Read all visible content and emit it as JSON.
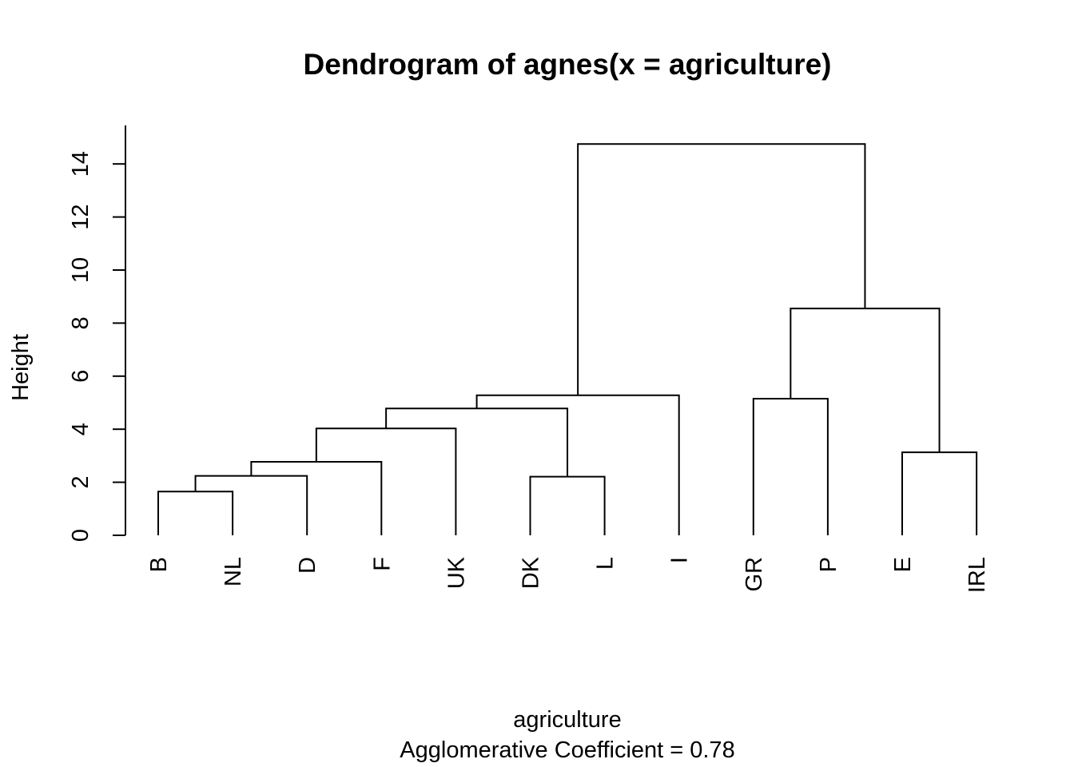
{
  "chart_data": {
    "type": "dendrogram",
    "title": "Dendrogram of  agnes(x = agriculture)",
    "xlabel": "agriculture",
    "sublabel": "Agglomerative Coefficient =  0.78",
    "ylabel": "Height",
    "ylim": [
      0,
      15.2
    ],
    "yticks": [
      0,
      2,
      4,
      6,
      8,
      10,
      12,
      14
    ],
    "leaves": [
      "B",
      "NL",
      "D",
      "F",
      "UK",
      "DK",
      "L",
      "I",
      "GR",
      "P",
      "E",
      "IRL"
    ],
    "merges": [
      {
        "id": "m1",
        "left": "B",
        "right": "NL",
        "height": 1.65
      },
      {
        "id": "m2",
        "left": "m1",
        "right": "D",
        "height": 2.24
      },
      {
        "id": "m3",
        "left": "m2",
        "right": "F",
        "height": 2.77
      },
      {
        "id": "m4",
        "left": "m3",
        "right": "UK",
        "height": 4.03
      },
      {
        "id": "m5",
        "left": "DK",
        "right": "L",
        "height": 2.21
      },
      {
        "id": "m6",
        "left": "m4",
        "right": "m5",
        "height": 4.78
      },
      {
        "id": "m7",
        "left": "m6",
        "right": "I",
        "height": 5.28
      },
      {
        "id": "m8",
        "left": "GR",
        "right": "P",
        "height": 5.15
      },
      {
        "id": "m9",
        "left": "E",
        "right": "IRL",
        "height": 3.13
      },
      {
        "id": "m10",
        "left": "m8",
        "right": "m9",
        "height": 8.55
      },
      {
        "id": "m11",
        "left": "m7",
        "right": "m10",
        "height": 14.75
      }
    ]
  }
}
